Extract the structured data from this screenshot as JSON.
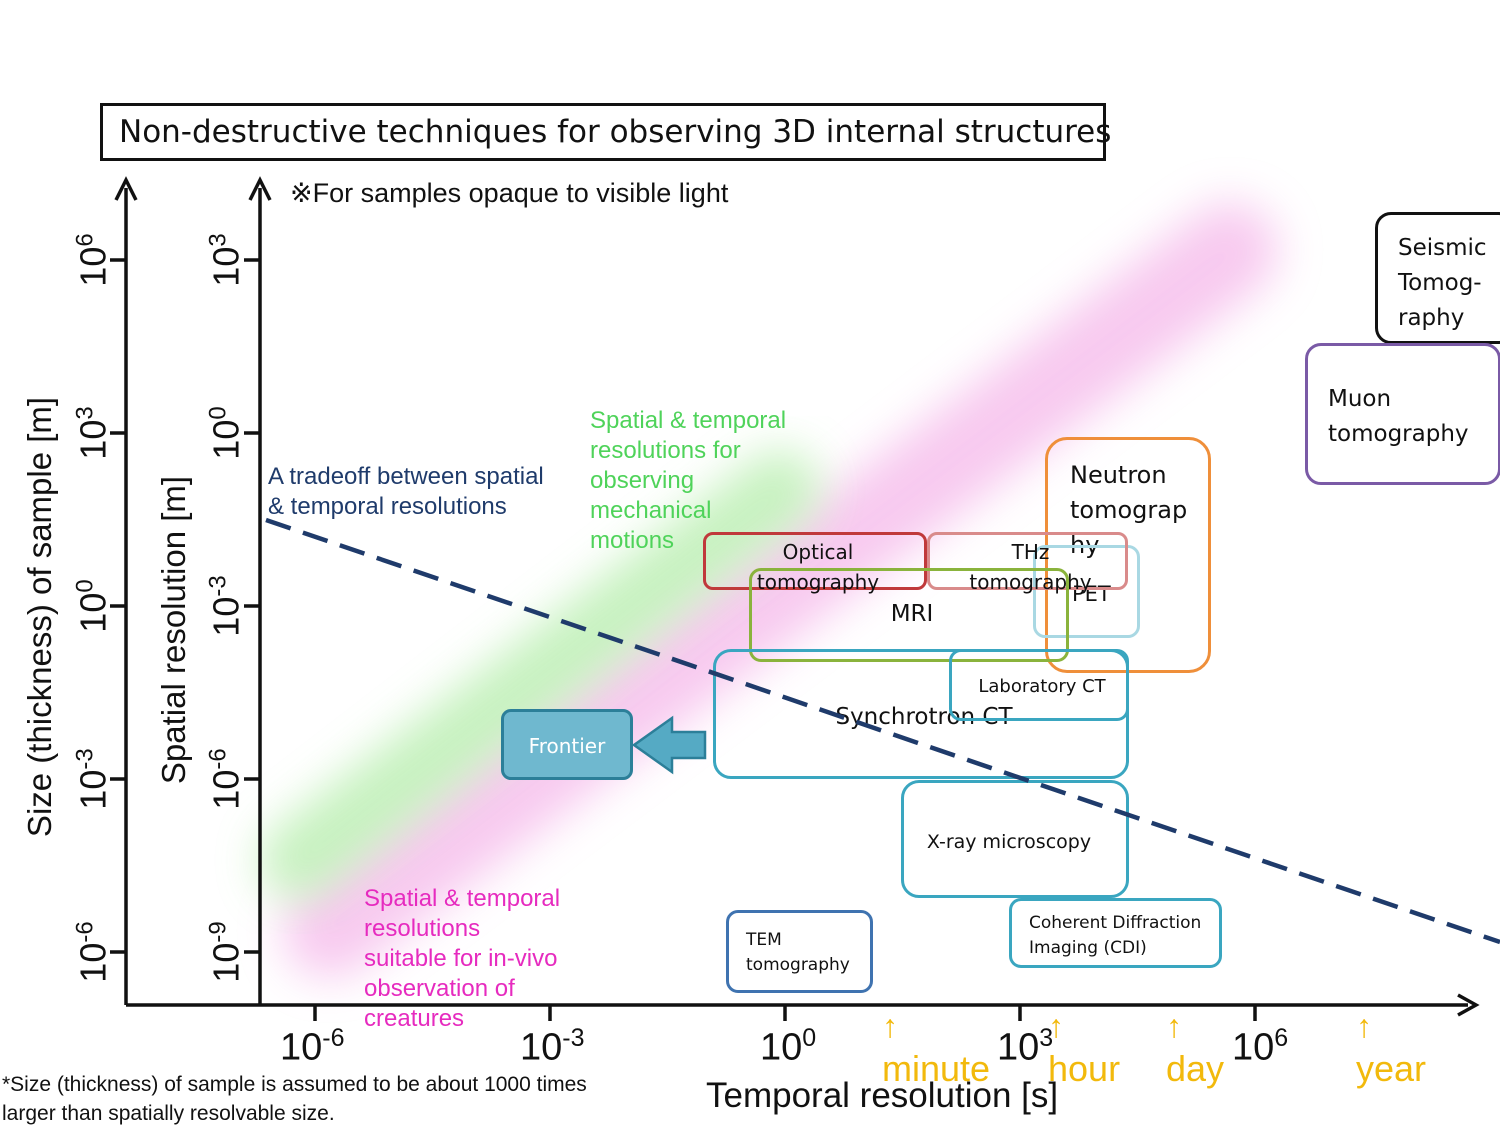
{
  "title": "Non-destructive techniques for observing 3D internal structures",
  "subtitle_note": "※For samples opaque to visible light",
  "axes": {
    "y_outer_title": "Size (thickness) of sample [m]",
    "y_inner_title": "Spatial resolution [m]",
    "x_title": "Temporal resolution [s]",
    "y_outer_ticks": [
      {
        "base": "10",
        "exp": "6"
      },
      {
        "base": "10",
        "exp": "3"
      },
      {
        "base": "10",
        "exp": "0"
      },
      {
        "base": "10",
        "exp": "-3"
      },
      {
        "base": "10",
        "exp": "-6"
      }
    ],
    "y_inner_ticks": [
      {
        "base": "10",
        "exp": "3"
      },
      {
        "base": "10",
        "exp": "0"
      },
      {
        "base": "10",
        "exp": "-3"
      },
      {
        "base": "10",
        "exp": "-6"
      },
      {
        "base": "10",
        "exp": "-9"
      }
    ],
    "x_ticks": [
      {
        "base": "10",
        "exp": "-6"
      },
      {
        "base": "10",
        "exp": "-3"
      },
      {
        "base": "10",
        "exp": "0"
      },
      {
        "base": "10",
        "exp": "3"
      },
      {
        "base": "10",
        "exp": "6"
      }
    ],
    "time_marks": [
      {
        "arrow": "↑",
        "label": "minute"
      },
      {
        "arrow": "↑",
        "label": "hour"
      },
      {
        "arrow": "↑",
        "label": "day"
      },
      {
        "arrow": "↑",
        "label": "year"
      }
    ]
  },
  "annotations": {
    "tradeoff": "A tradeoff between spatial\n& temporal resolutions",
    "mechanical": "Spatial & temporal\nresolutions for\nobserving\nmechanical\nmotions",
    "in_vivo": "Spatial & temporal\nresolutions\nsuitable for in-vivo\nobservation of\ncreatures",
    "footnote": "*Size (thickness) of sample is assumed to be about 1000 times\nlarger than spatially resolvable size."
  },
  "frontier_label": "Frontier",
  "techniques": {
    "seismic": "Seismic\nTomog-\nraphy",
    "muon": "Muon\ntomography",
    "neutron": "Neutron\ntomograp\nhy",
    "pet": "PET",
    "optical": "Optical\ntomography",
    "thz": "THz\ntomography",
    "mri": "MRI",
    "synchrotron": "Synchrotron CT",
    "laboratory": "Laboratory CT",
    "xray": "X-ray microscopy",
    "cdi": "Coherent Diffraction\nImaging (CDI)",
    "tem": "TEM\ntomography"
  },
  "colors": {
    "axis": "#111111",
    "tradeoff_line": "#1f3b6b",
    "mechanical_text": "#4fd35a",
    "in_vivo_text": "#e62bbf",
    "time_marks": "#f2b90c",
    "frontier_fill": "#5fb0c8",
    "frontier_border": "#2c7f99",
    "optical_border": "#c0393b",
    "thz_border": "#d98b8b",
    "mri_border": "#8ab33c",
    "neutron_border": "#ef8f3a",
    "pet_border": "#a9d8e3",
    "synchrotron_border": "#3aa6c0",
    "xray_border": "#3aa6c0",
    "cdi_border": "#3aa6c0",
    "tem_border": "#3f73b0",
    "muon_border": "#7a5aa6",
    "seismic_border": "#111111"
  }
}
